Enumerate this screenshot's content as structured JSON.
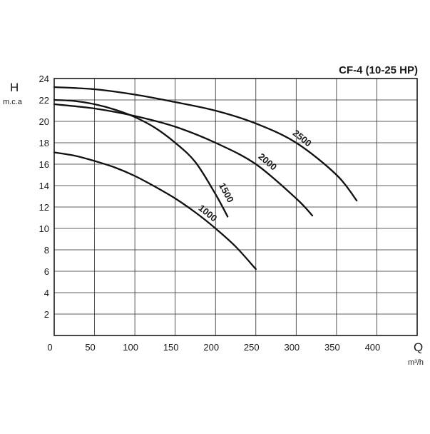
{
  "chart_data": {
    "type": "line",
    "title": "CF-4 (10-25 HP)",
    "ylabel": "H",
    "yunit": "m.c.a",
    "xlabel": "Q",
    "xunit": "m³/h",
    "xlim": [
      0,
      450
    ],
    "ylim": [
      0,
      24
    ],
    "xticks": [
      0,
      50,
      100,
      150,
      200,
      250,
      300,
      350,
      400
    ],
    "yticks": [
      2,
      4,
      6,
      8,
      10,
      12,
      14,
      16,
      18,
      20,
      22,
      24
    ],
    "grid": true,
    "series": [
      {
        "name": "1000",
        "x": [
          0,
          25,
          50,
          75,
          100,
          125,
          150,
          175,
          200,
          225,
          250
        ],
        "y": [
          17.1,
          16.8,
          16.3,
          15.7,
          14.9,
          13.9,
          12.8,
          11.5,
          10.0,
          8.3,
          6.2
        ]
      },
      {
        "name": "1500",
        "x": [
          0,
          25,
          50,
          75,
          100,
          125,
          150,
          175,
          200,
          215
        ],
        "y": [
          22.0,
          21.9,
          21.6,
          21.1,
          20.4,
          19.4,
          18.0,
          16.2,
          13.2,
          11.1
        ]
      },
      {
        "name": "2000",
        "x": [
          0,
          50,
          100,
          150,
          200,
          250,
          300,
          320
        ],
        "y": [
          21.6,
          21.2,
          20.5,
          19.5,
          18.0,
          16.0,
          12.8,
          11.2
        ]
      },
      {
        "name": "2500",
        "x": [
          0,
          50,
          100,
          150,
          200,
          250,
          300,
          350,
          375
        ],
        "y": [
          23.2,
          23.0,
          22.5,
          21.8,
          21.0,
          19.8,
          18.0,
          15.0,
          12.6
        ]
      }
    ]
  }
}
